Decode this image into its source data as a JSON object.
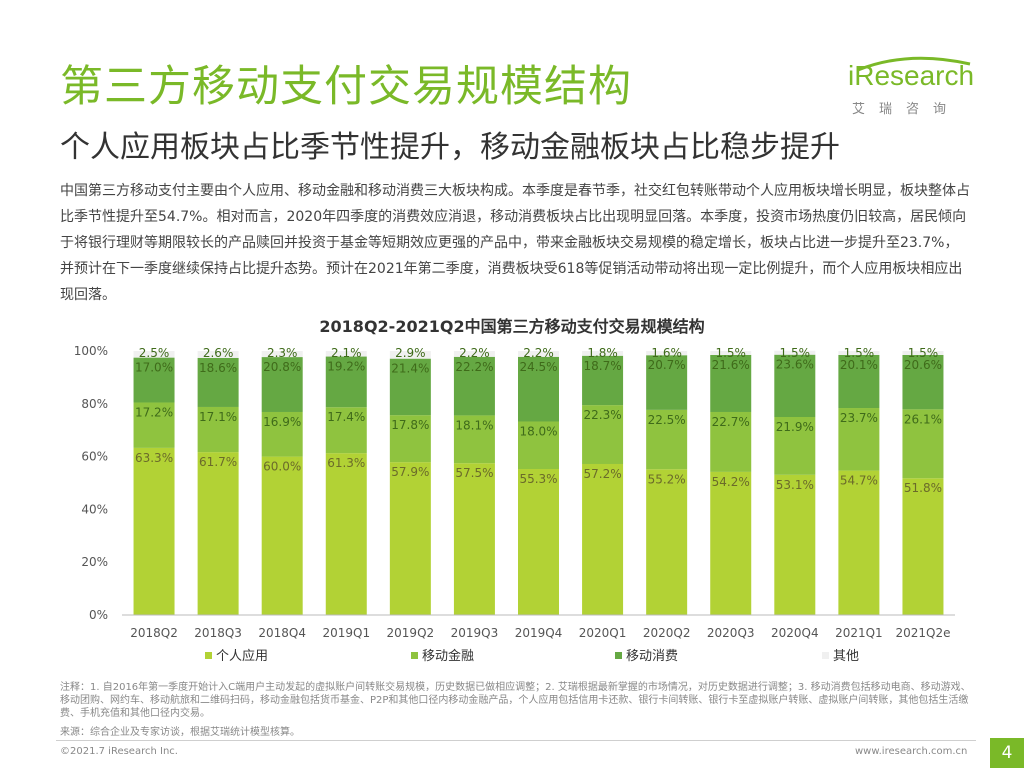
{
  "header": {
    "title": "第三方移动支付交易规模结构",
    "subtitle": "个人应用板块占比季节性提升，移动金融板块占比稳步提升"
  },
  "logo": {
    "brand": "iResearch",
    "cn": "艾瑞咨询"
  },
  "body_text": "中国第三方移动支付主要由个人应用、移动金融和移动消费三大板块构成。本季度是春节季，社交红包转账带动个人应用板块增长明显，板块整体占比季节性提升至54.7%。相对而言，2020年四季度的消费效应消退，移动消费板块占比出现明显回落。本季度，投资市场热度仍旧较高，居民倾向于将银行理财等期限较长的产品赎回并投资于基金等短期效应更强的产品中，带来金融板块交易规模的稳定增长，板块占比进一步提升至23.7%，并预计在下一季度继续保持占比提升态势。预计在2021年第二季度，消费板块受618等促销活动带动将出现一定比例提升，而个人应用板块相应出现回落。",
  "chart_data": {
    "type": "bar",
    "stacked": true,
    "title": "2018Q2-2021Q2中国第三方移动支付交易规模结构",
    "categories": [
      "2018Q2",
      "2018Q3",
      "2018Q4",
      "2019Q1",
      "2019Q2",
      "2019Q3",
      "2019Q4",
      "2020Q1",
      "2020Q2",
      "2020Q3",
      "2020Q4",
      "2021Q1",
      "2021Q2e"
    ],
    "series": [
      {
        "name": "个人应用",
        "color": "#b2d235",
        "values": [
          63.3,
          61.7,
          60.0,
          61.3,
          57.9,
          57.5,
          55.3,
          57.2,
          55.2,
          54.2,
          53.1,
          54.7,
          51.8
        ]
      },
      {
        "name": "移动金融",
        "color": "#8fc33f",
        "values": [
          17.2,
          17.1,
          16.9,
          17.4,
          17.8,
          18.1,
          18.0,
          22.3,
          22.5,
          22.7,
          21.9,
          23.7,
          26.1
        ]
      },
      {
        "name": "移动消费",
        "color": "#65a843",
        "values": [
          17.0,
          18.6,
          20.8,
          19.2,
          21.4,
          22.2,
          24.5,
          18.7,
          20.7,
          21.6,
          23.6,
          20.1,
          20.6
        ]
      },
      {
        "name": "其他",
        "color": "#f0f0f0",
        "values": [
          2.5,
          2.6,
          2.3,
          2.1,
          2.9,
          2.2,
          2.2,
          1.8,
          1.6,
          1.5,
          1.5,
          1.5,
          1.5
        ]
      }
    ],
    "y_ticks": [
      "0%",
      "20%",
      "40%",
      "60%",
      "80%",
      "100%"
    ],
    "ylim": [
      0,
      100
    ],
    "legend": "bottom"
  },
  "footnote": "注释：1. 自2016年第一季度开始计入C端用户主动发起的虚拟账户间转账交易规模，历史数据已做相应调整；2. 艾瑞根据最新掌握的市场情况，对历史数据进行调整；3. 移动消费包括移动电商、移动游戏、移动团购、网约车、移动航旅和二维码扫码，移动金融包括货币基金、P2P和其他口径内移动金融产品，个人应用包括信用卡还款、银行卡间转账、银行卡至虚拟账户转账、虚拟账户间转账，其他包括生活缴费、手机充值和其他口径内交易。",
  "source": "来源：综合企业及专家访谈，根据艾瑞统计模型核算。",
  "footer": {
    "copyright": "©2021.7 iResearch Inc.",
    "website": "www.iresearch.com.cn",
    "page": "4"
  }
}
